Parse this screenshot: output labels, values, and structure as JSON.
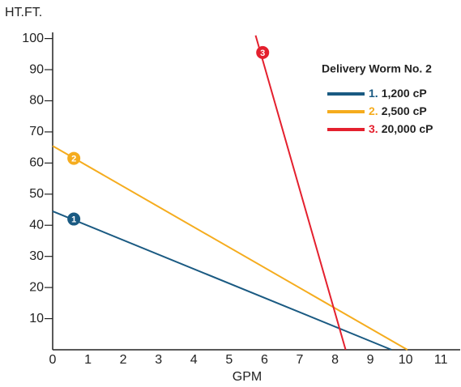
{
  "chart_data": {
    "type": "line",
    "ylabel": "HT.FT.",
    "xlabel": "GPM",
    "legend_title": "Delivery Worm No. 2",
    "xlim": [
      0,
      11.5
    ],
    "xticks": [
      0,
      1,
      2,
      3,
      4,
      5,
      6,
      7,
      8,
      9,
      10,
      11
    ],
    "ylim": [
      0,
      100
    ],
    "yticks": [
      10,
      20,
      30,
      40,
      50,
      60,
      70,
      80,
      90,
      100
    ],
    "series": [
      {
        "number": "1.",
        "name": "1,200 cP",
        "color": "#1a5a82",
        "x": [
          0,
          9.6
        ],
        "values": [
          44.5,
          0
        ],
        "marker": {
          "label": "1",
          "x": 0.6,
          "y": 42
        }
      },
      {
        "number": "2.",
        "name": "2,500 cP",
        "color": "#f5ac1e",
        "x": [
          0,
          10.05
        ],
        "values": [
          65.5,
          0
        ],
        "marker": {
          "label": "2",
          "x": 0.6,
          "y": 61.5
        }
      },
      {
        "number": "3.",
        "name": "20,000 cP",
        "color": "#e4202e",
        "x": [
          5.75,
          8.3
        ],
        "values": [
          101,
          0
        ],
        "marker": {
          "label": "3",
          "x": 5.95,
          "y": 95.5
        }
      }
    ]
  }
}
